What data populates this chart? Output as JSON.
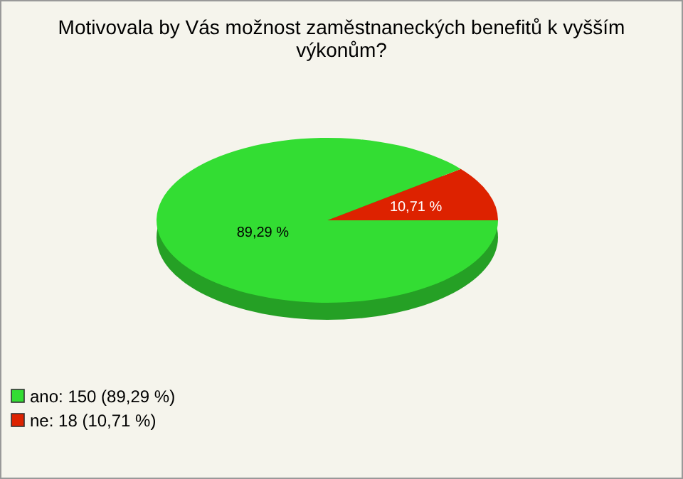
{
  "chart_data": {
    "type": "pie",
    "title": "Motivovala by Vás možnost zaměstnaneckých benefitů k vyšším výkonům?",
    "categories": [
      "ano: 150 (89,29 %)",
      "ne: 18 (10,71 %)"
    ],
    "values": [
      89.29,
      10.71
    ],
    "value_labels": [
      "89,29 %",
      "10,71 %"
    ],
    "colors": [
      "#33dd33",
      "#dd2200"
    ],
    "legend": "bottom left"
  }
}
